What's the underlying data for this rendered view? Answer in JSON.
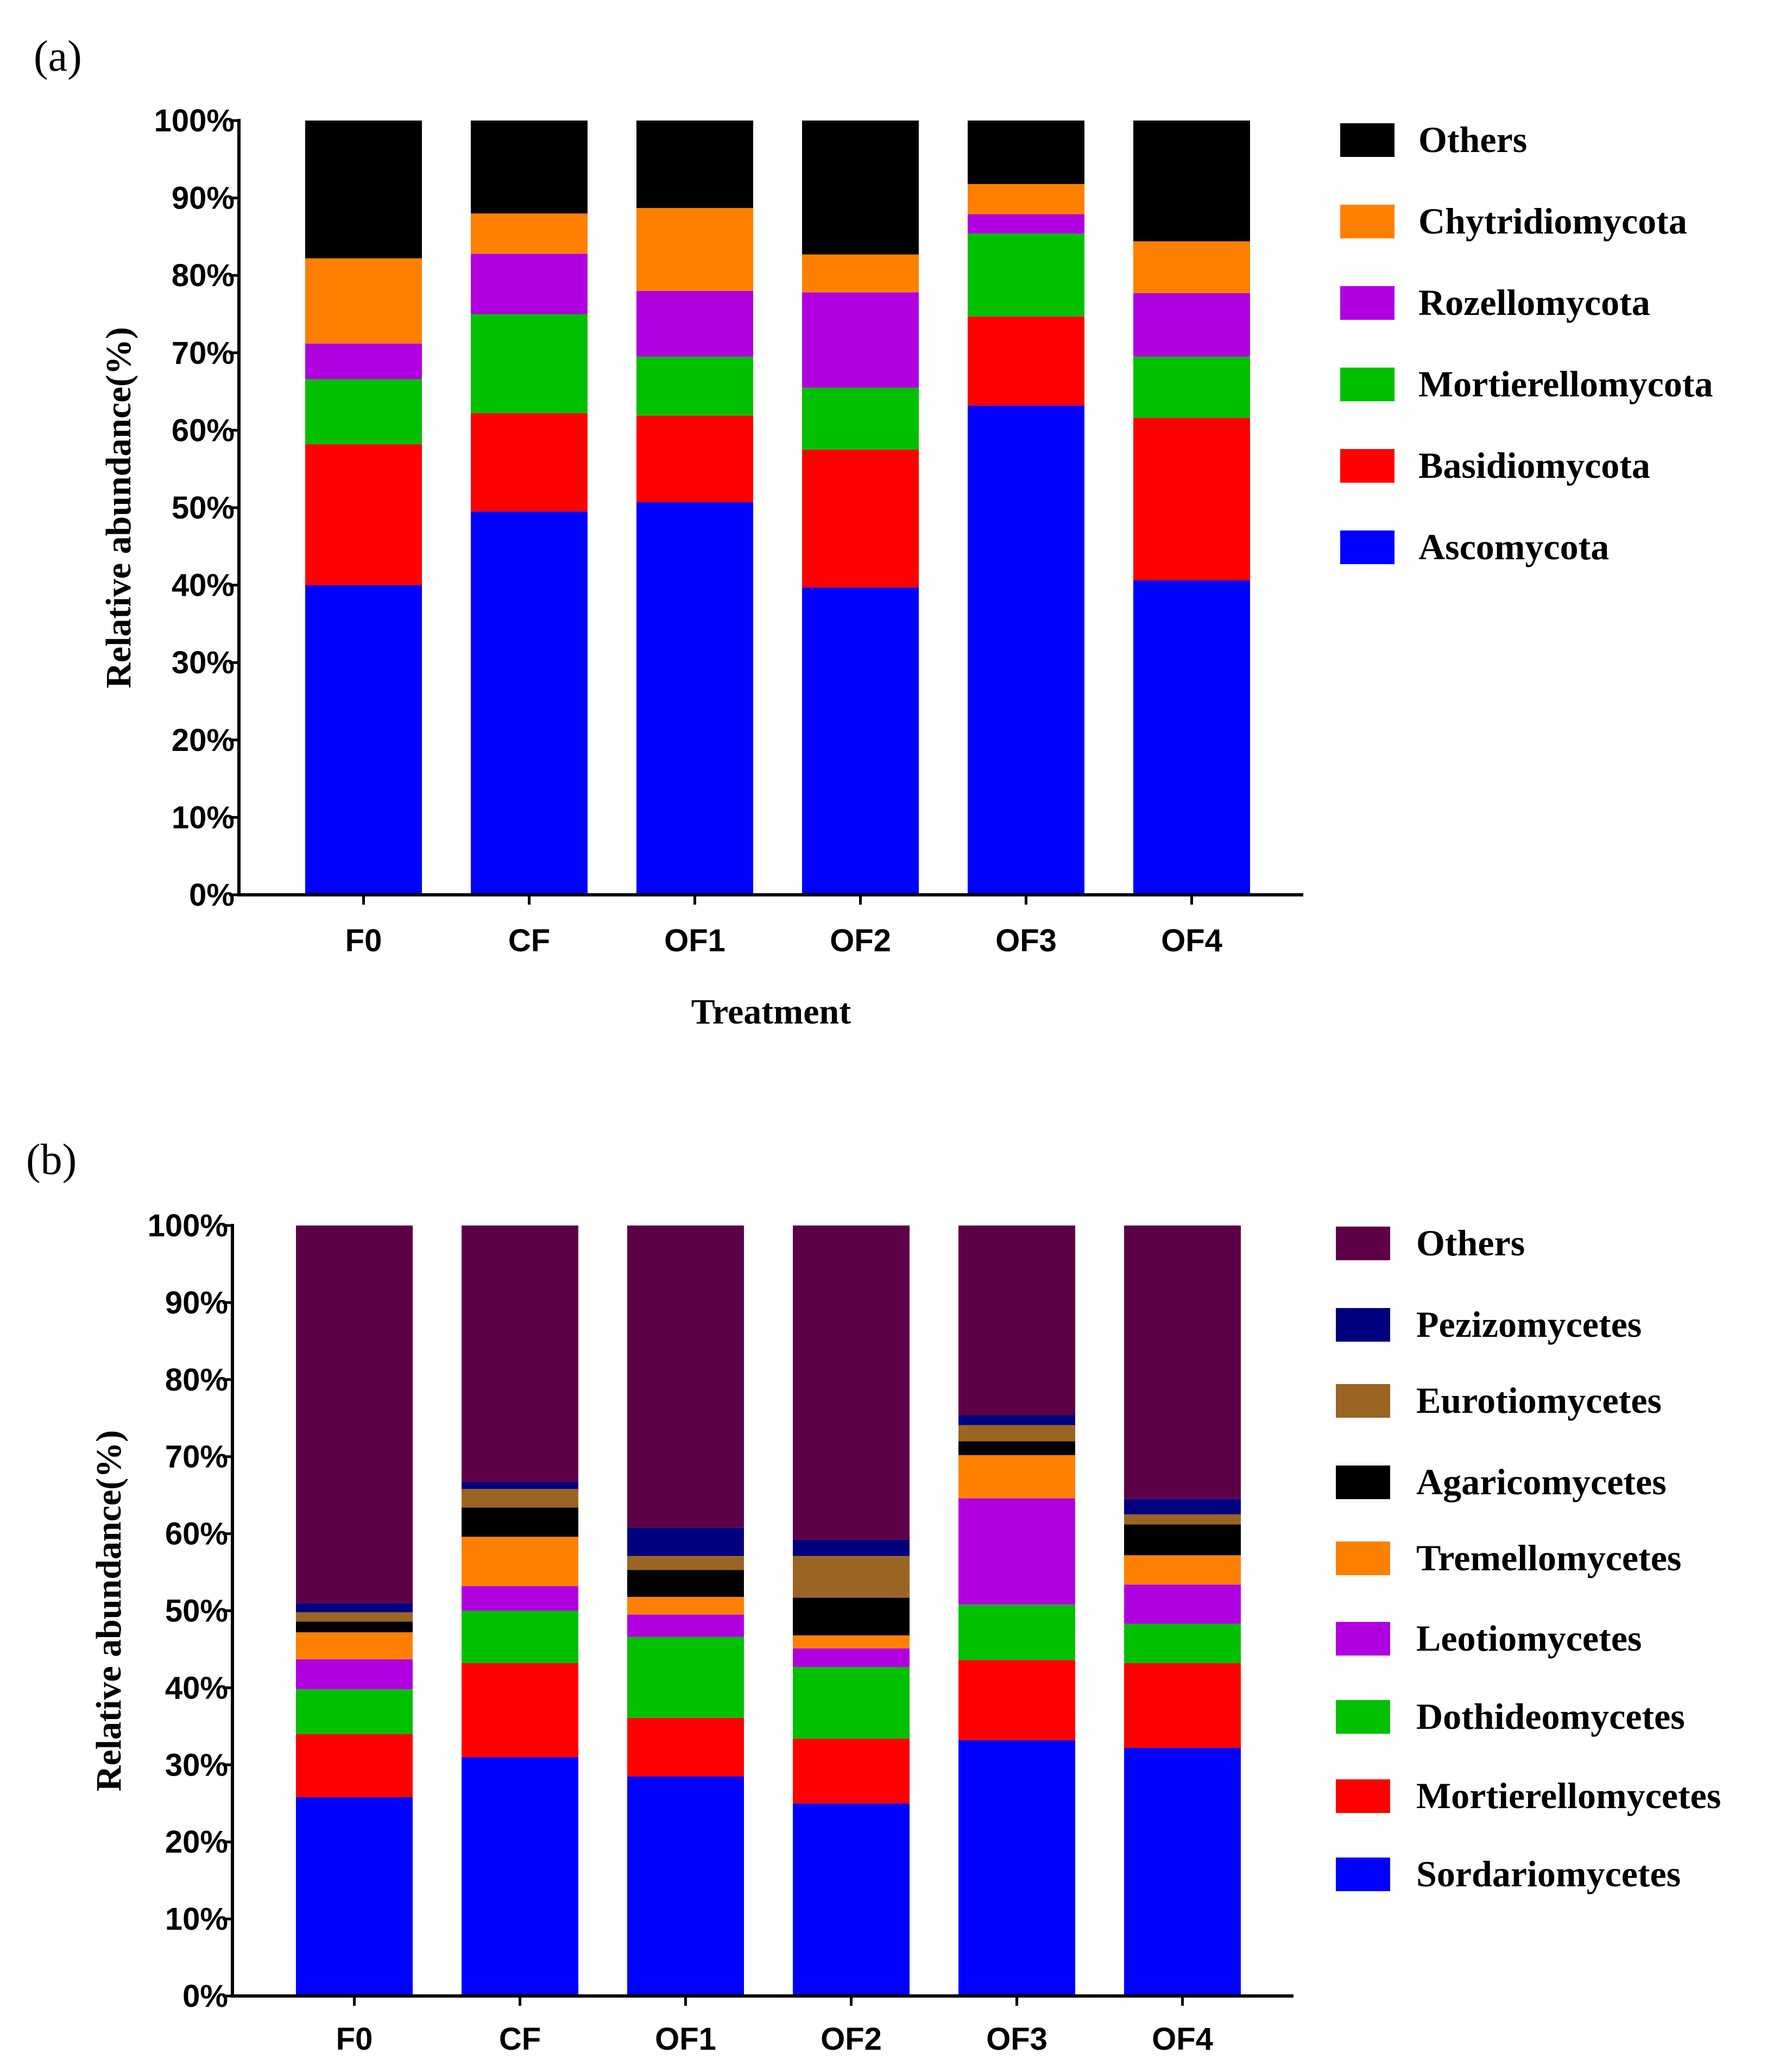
{
  "chart_data": [
    {
      "type": "bar",
      "stacked": true,
      "panel_label": "(a)",
      "title": "",
      "xlabel": "Treatment",
      "ylabel": "Relative abundance(%)",
      "ylim": [
        0,
        100
      ],
      "yticks": [
        "0%",
        "10%",
        "20%",
        "30%",
        "40%",
        "50%",
        "60%",
        "70%",
        "80%",
        "90%",
        "100%"
      ],
      "categories": [
        "F0",
        "CF",
        "OF1",
        "OF2",
        "OF3",
        "OF4"
      ],
      "series": [
        {
          "name": "Ascomycota",
          "color": "#0000ff",
          "values": [
            40.0,
            49.5,
            50.7,
            39.7,
            63.2,
            40.6
          ]
        },
        {
          "name": "Basidiomycota",
          "color": "#ff0000",
          "values": [
            18.2,
            12.7,
            11.2,
            17.8,
            11.5,
            21.0
          ]
        },
        {
          "name": "Mortierellomycota",
          "color": "#00c000",
          "values": [
            8.4,
            12.8,
            7.6,
            8.0,
            10.7,
            7.9
          ]
        },
        {
          "name": "Rozellomycota",
          "color": "#b000e0",
          "values": [
            4.6,
            7.8,
            8.5,
            12.3,
            2.5,
            8.2
          ]
        },
        {
          "name": "Chytridiomycota",
          "color": "#ff8000",
          "values": [
            11.0,
            5.2,
            10.7,
            4.9,
            3.9,
            6.7
          ]
        },
        {
          "name": "Others",
          "color": "#000000",
          "values": [
            17.8,
            12.0,
            11.3,
            17.3,
            8.2,
            15.6
          ]
        }
      ],
      "legend_order": [
        "Others",
        "Chytridiomycota",
        "Rozellomycota",
        "Mortierellomycota",
        "Basidiomycota",
        "Ascomycota"
      ],
      "legend_position": "right"
    },
    {
      "type": "bar",
      "stacked": true,
      "panel_label": "(b)",
      "title": "",
      "xlabel": "",
      "ylabel": "Relative abundance(%)",
      "ylim": [
        0,
        100
      ],
      "yticks": [
        "0%",
        "10%",
        "20%",
        "30%",
        "40%",
        "50%",
        "60%",
        "70%",
        "80%",
        "90%",
        "100%"
      ],
      "categories": [
        "F0",
        "CF",
        "OF1",
        "OF2",
        "OF3",
        "OF4"
      ],
      "series": [
        {
          "name": "Sordariomycetes",
          "color": "#0000ff",
          "values": [
            25.8,
            31.0,
            28.5,
            25.0,
            33.2,
            32.2
          ]
        },
        {
          "name": "Mortierellomycetes",
          "color": "#ff0000",
          "values": [
            8.2,
            12.2,
            7.6,
            8.4,
            10.4,
            11.0
          ]
        },
        {
          "name": "Dothideomycetes",
          "color": "#00c000",
          "values": [
            5.8,
            6.8,
            10.5,
            9.3,
            7.2,
            5.1
          ]
        },
        {
          "name": "Leotiomycetes",
          "color": "#b000e0",
          "values": [
            3.9,
            3.2,
            2.9,
            2.4,
            13.8,
            5.1
          ]
        },
        {
          "name": "Tremellomycetes",
          "color": "#ff8000",
          "values": [
            3.5,
            6.4,
            2.3,
            1.7,
            5.6,
            3.8
          ]
        },
        {
          "name": "Agaricomycetes",
          "color": "#000000",
          "values": [
            1.4,
            3.8,
            3.5,
            4.9,
            1.8,
            4.0
          ]
        },
        {
          "name": "Eurotiomycetes",
          "color": "#9b6422",
          "values": [
            1.2,
            2.4,
            1.8,
            5.4,
            2.1,
            1.3
          ]
        },
        {
          "name": "Pezizomycetes",
          "color": "#00007f",
          "values": [
            1.2,
            0.9,
            3.7,
            2.1,
            1.3,
            2.0
          ]
        },
        {
          "name": "Others",
          "color": "#5e0048",
          "values": [
            49.0,
            33.3,
            39.2,
            40.8,
            24.6,
            35.5
          ]
        }
      ],
      "legend_order": [
        "Others",
        "Pezizomycetes",
        "Eurotiomycetes",
        "Agaricomycetes",
        "Tremellomycetes",
        "Leotiomycetes",
        "Dothideomycetes",
        "Mortierellomycetes",
        "Sordariomycetes"
      ],
      "legend_position": "right"
    }
  ]
}
